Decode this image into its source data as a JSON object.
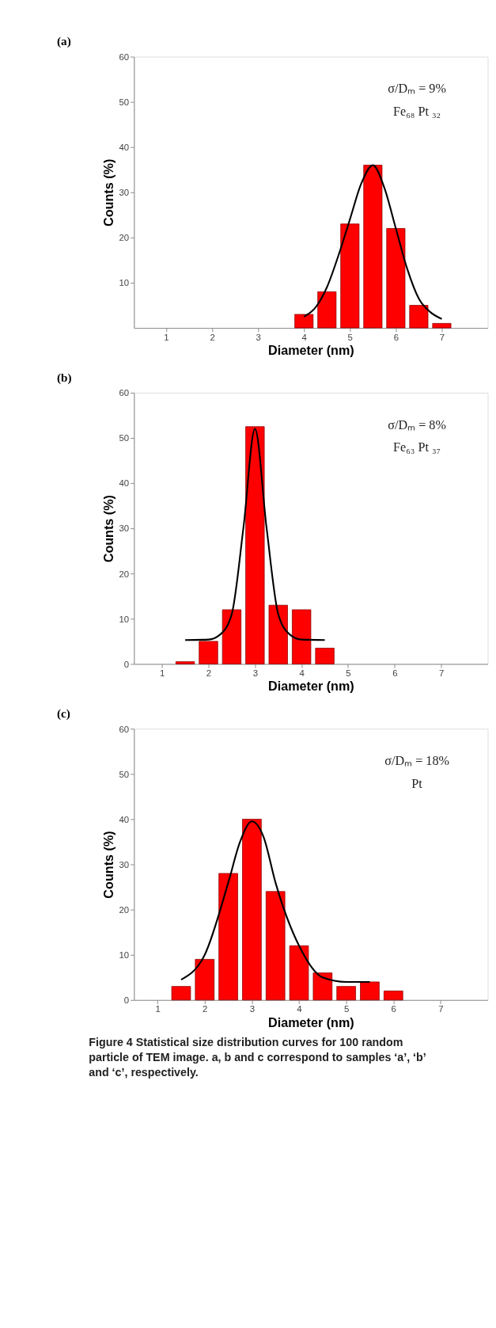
{
  "chart_data": [
    {
      "type": "bar",
      "title": "(a)",
      "xlabel": "Diameter (nm)",
      "ylabel": "Counts (%)",
      "xlim": [
        0.3,
        8
      ],
      "xticks": [
        1,
        2,
        3,
        4,
        5,
        6,
        7
      ],
      "ylim": [
        0,
        60
      ],
      "yticks": [
        10,
        20,
        30,
        40,
        50,
        60
      ],
      "annotations": [
        "σ/Dₘ = 9%",
        "Fe₆₈ Pt ₃₂"
      ],
      "series": [
        {
          "color": "#ff0000",
          "x": [
            4,
            4.5,
            5,
            5.5,
            6,
            6.5,
            7
          ],
          "values": [
            3,
            8,
            23,
            36,
            22,
            5,
            1
          ]
        },
        {
          "type": "line",
          "color": "#000000",
          "x": [
            4,
            4.25,
            4.5,
            4.75,
            5,
            5.25,
            5.5,
            5.75,
            6,
            6.25,
            6.5,
            6.75,
            7
          ],
          "values": [
            2.5,
            4.5,
            9,
            16,
            24,
            32,
            36,
            31,
            22,
            13,
            6.5,
            3.5,
            2
          ]
        }
      ]
    },
    {
      "type": "bar",
      "title": "(b)",
      "xlabel": "Diameter (nm)",
      "ylabel": "Counts (%)",
      "xlim": [
        0.4,
        8
      ],
      "xticks": [
        1,
        2,
        3,
        4,
        5,
        6,
        7
      ],
      "ylim": [
        0,
        60
      ],
      "yticks": [
        0,
        10,
        20,
        30,
        40,
        50,
        60
      ],
      "annotations": [
        "σ/Dₘ = 8%",
        "Fe₆₃ Pt ₃₇"
      ],
      "series": [
        {
          "color": "#ff0000",
          "x": [
            1.5,
            2,
            2.5,
            3,
            3.5,
            4,
            4.5
          ],
          "values": [
            0.5,
            5,
            12,
            52.5,
            13,
            12,
            3.5
          ]
        },
        {
          "type": "line",
          "color": "#000000",
          "x": [
            1.5,
            2,
            2.25,
            2.5,
            2.75,
            3,
            3.25,
            3.5,
            3.75,
            4,
            4.5
          ],
          "values": [
            5.3,
            5.4,
            6.5,
            11,
            30,
            52,
            30,
            11,
            6.5,
            5.4,
            5.3
          ]
        }
      ]
    },
    {
      "type": "bar",
      "title": "(c)",
      "xlabel": "Diameter (nm)",
      "ylabel": "Counts (%)",
      "xlim": [
        0.5,
        8
      ],
      "xticks": [
        1,
        2,
        3,
        4,
        5,
        6,
        7
      ],
      "ylim": [
        0,
        60
      ],
      "yticks": [
        0,
        10,
        20,
        30,
        40,
        50,
        60
      ],
      "annotations": [
        "σ/Dₘ = 18%",
        "Pt",
        "Figure 4 Statistical size distribution curves for 100 random particle of TEM image. a, b and c correspond to samples ‘a’, ‘b’ and ‘c’, respectively."
      ],
      "series": [
        {
          "color": "#ff0000",
          "x": [
            1.5,
            2,
            2.5,
            3,
            3.5,
            4,
            4.5,
            5,
            5.5,
            6
          ],
          "values": [
            3,
            9,
            28,
            40,
            24,
            12,
            6,
            3,
            4,
            2
          ]
        },
        {
          "type": "line",
          "color": "#000000",
          "x": [
            1.5,
            2,
            2.5,
            2.75,
            3,
            3.25,
            3.5,
            4,
            4.5,
            5,
            5.5
          ],
          "values": [
            4.5,
            10,
            26,
            35,
            39.5,
            36,
            26,
            12,
            5,
            4,
            4
          ]
        }
      ]
    }
  ]
}
